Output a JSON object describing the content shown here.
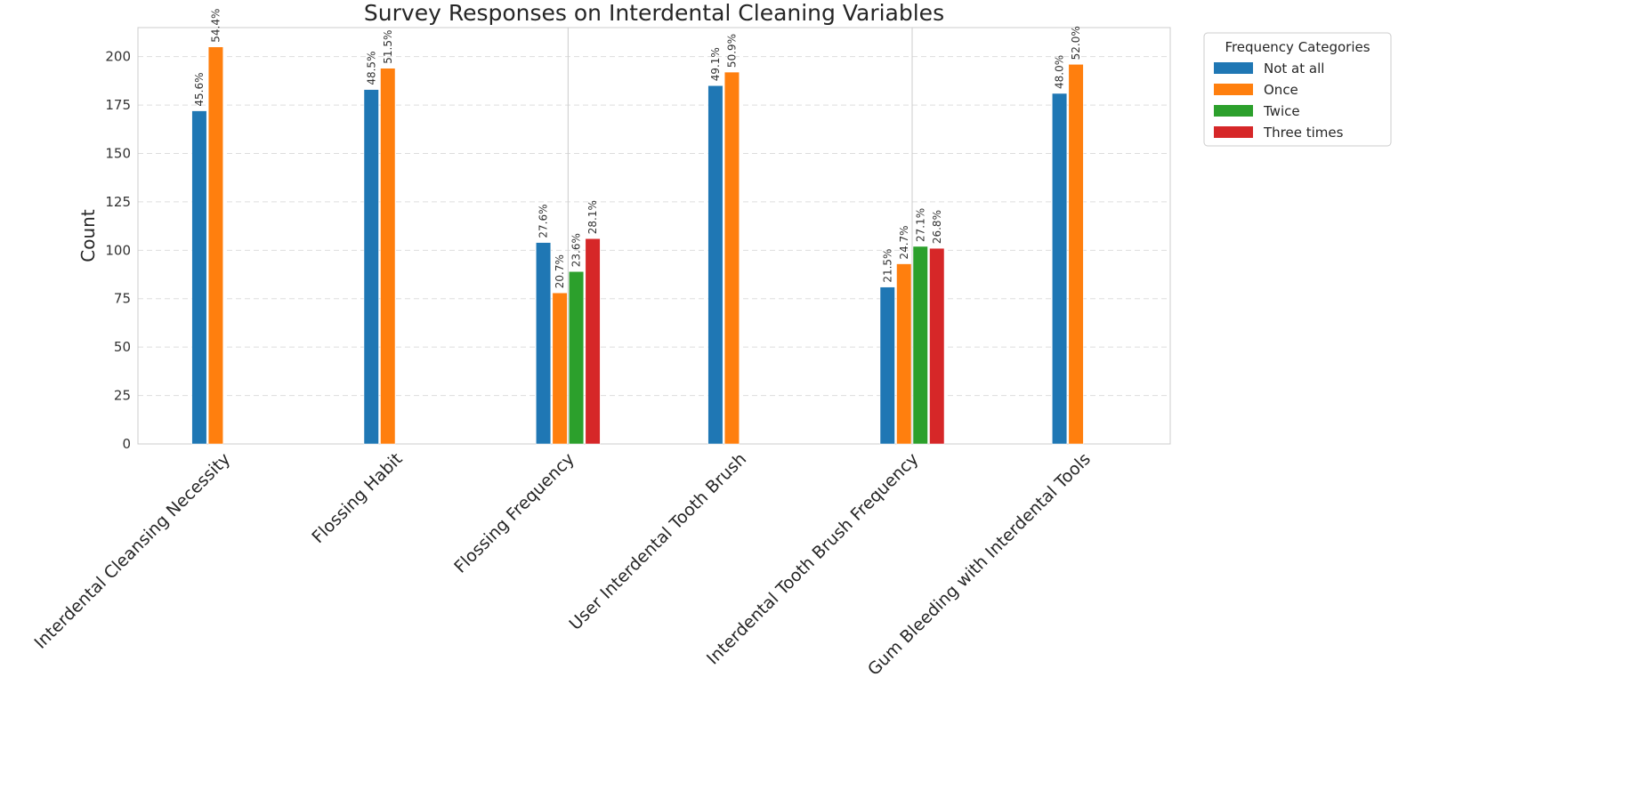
{
  "chart_data": {
    "type": "bar",
    "title": "Survey Responses on Interdental Cleaning Variables",
    "xlabel": "",
    "ylabel": "Count",
    "ylim": [
      0,
      215
    ],
    "yticks": [
      0,
      25,
      50,
      75,
      100,
      125,
      150,
      175,
      200
    ],
    "grid": "y-dashed",
    "categories": [
      "Interdental Cleansing Necessity",
      "Flossing Habit",
      "Flossing Frequency",
      "User Interdental Tooth Brush",
      "Interdental Tooth Brush Frequency",
      "Gum Bleeding with Interdental Tools"
    ],
    "series": [
      {
        "name": "Not at all",
        "color": "#1f77b4",
        "values": [
          172,
          183,
          104,
          185,
          81,
          181
        ],
        "labels": [
          "45.6%",
          "48.5%",
          "27.6%",
          "49.1%",
          "21.5%",
          "48.0%"
        ]
      },
      {
        "name": "Once",
        "color": "#ff7f0e",
        "values": [
          205,
          194,
          78,
          192,
          93,
          196
        ],
        "labels": [
          "54.4%",
          "51.5%",
          "20.7%",
          "50.9%",
          "24.7%",
          "52.0%"
        ]
      },
      {
        "name": "Twice",
        "color": "#2ca02c",
        "values": [
          null,
          null,
          89,
          null,
          102,
          null
        ],
        "labels": [
          null,
          null,
          "23.6%",
          null,
          "27.1%",
          null
        ]
      },
      {
        "name": "Three times",
        "color": "#d62728",
        "values": [
          null,
          null,
          106,
          null,
          101,
          null
        ],
        "labels": [
          null,
          null,
          "28.1%",
          null,
          "26.8%",
          null
        ]
      }
    ],
    "legend": {
      "title": "Frequency Categories",
      "placement": "outside-top-right"
    }
  }
}
